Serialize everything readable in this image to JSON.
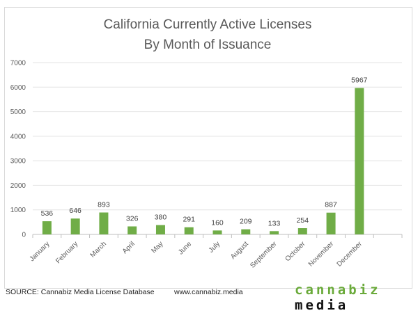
{
  "chart_data": {
    "type": "bar",
    "title": [
      "California Currently Active Licenses",
      "By Month of Issuance"
    ],
    "categories": [
      "January",
      "February",
      "March",
      "April",
      "May",
      "June",
      "July",
      "August",
      "September",
      "October",
      "November",
      "December"
    ],
    "values": [
      536,
      646,
      893,
      326,
      380,
      291,
      160,
      209,
      133,
      254,
      887,
      5967
    ],
    "xlabel": "",
    "ylabel": "",
    "ylim": [
      0,
      7000
    ],
    "yticks": [
      0,
      1000,
      2000,
      3000,
      4000,
      5000,
      6000,
      7000
    ],
    "grid": true,
    "data_labels": true,
    "bar_color": "#70ad47"
  },
  "footer": {
    "source": "SOURCE: Cannabiz Media License Database",
    "url": "www.cannabiz.media",
    "logo": {
      "part1": "cannabiz",
      "part2": "media",
      "color1": "#6aaa3a",
      "color2": "#111111"
    }
  }
}
